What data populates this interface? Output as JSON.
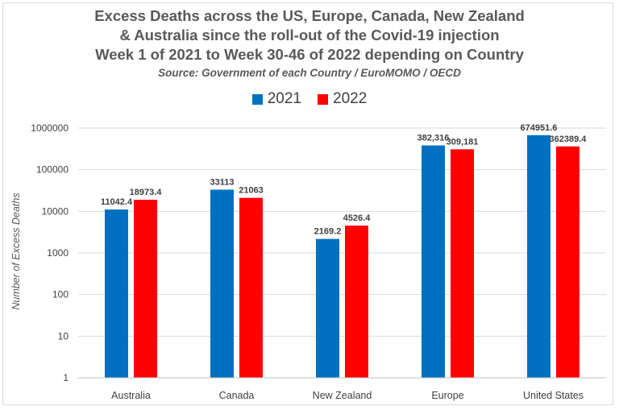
{
  "chart_data": {
    "type": "bar",
    "title_lines": [
      "Excess Deaths across the US, Europe, Canada, New Zealand",
      "& Australia since the roll-out of the Covid-19 injection",
      "Week 1 of 2021 to Week 30-46 of 2022 depending on Country"
    ],
    "subtitle": "Source: Government of each Country / EuroMOMO / OECD",
    "ylabel": "Number of Excess Deaths",
    "xlabel": "",
    "yscale": "log",
    "ylim": [
      1,
      1000000
    ],
    "yticks": [
      "1",
      "10",
      "100",
      "1000",
      "10000",
      "100000",
      "1000000"
    ],
    "grid": true,
    "legend_position": "top-center",
    "categories": [
      "Australia",
      "Canada",
      "New Zealand",
      "Europe",
      "United States"
    ],
    "series": [
      {
        "name": "2021",
        "color": "#0070C0",
        "values": [
          11042.4,
          33113,
          2169.2,
          382316,
          674951.6
        ],
        "labels": [
          "11042.4",
          "33113",
          "2169.2",
          "382,316",
          "674951.6"
        ]
      },
      {
        "name": "2022",
        "color": "#FF0000",
        "values": [
          18973.4,
          21063,
          4526.4,
          309181,
          362389.4
        ],
        "labels": [
          "18973.4",
          "21063",
          "4526.4",
          "309,181",
          "362389.4"
        ]
      }
    ]
  }
}
